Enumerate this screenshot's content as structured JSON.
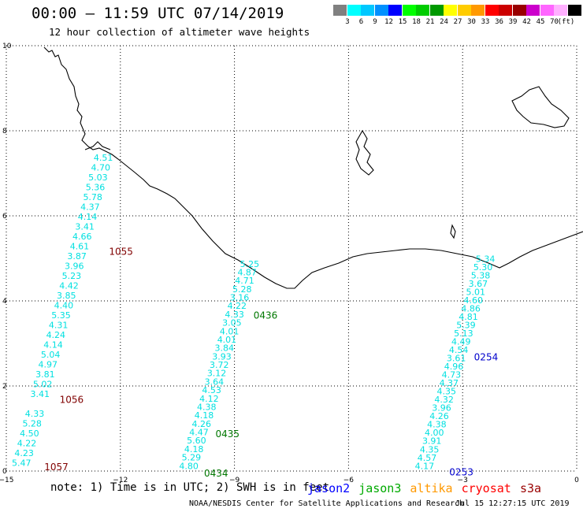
{
  "header": {
    "title": "00:00 – 11:59 UTC 07/14/2019",
    "subtitle": "12 hour collection of altimeter wave heights"
  },
  "scale": {
    "unit": "(ft)",
    "bins": [
      {
        "label": "",
        "color": "#808080"
      },
      {
        "label": "3",
        "color": "#00ffff"
      },
      {
        "label": "6",
        "color": "#00c8ff"
      },
      {
        "label": "9",
        "color": "#0090ff"
      },
      {
        "label": "12",
        "color": "#0000ff"
      },
      {
        "label": "15",
        "color": "#00ff00"
      },
      {
        "label": "18",
        "color": "#00cc00"
      },
      {
        "label": "21",
        "color": "#009900"
      },
      {
        "label": "24",
        "color": "#ffff00"
      },
      {
        "label": "27",
        "color": "#ffcc00"
      },
      {
        "label": "30",
        "color": "#ff9900"
      },
      {
        "label": "33",
        "color": "#ff0000"
      },
      {
        "label": "36",
        "color": "#cc0000"
      },
      {
        "label": "39",
        "color": "#990000"
      },
      {
        "label": "42",
        "color": "#cc00cc"
      },
      {
        "label": "45",
        "color": "#ff66ff"
      },
      {
        "label": "70",
        "color": "#ffb0ff"
      },
      {
        "label": "",
        "color": "#000000"
      }
    ]
  },
  "axes": {
    "x_ticks": [
      "−15",
      "−12",
      "−9",
      "−6",
      "−3",
      "0"
    ],
    "y_ticks": [
      "0",
      "2",
      "4",
      "6",
      "8",
      "10"
    ],
    "x_range": [
      -15,
      0
    ],
    "y_range": [
      0,
      10
    ]
  },
  "tracks": [
    {
      "label_color": "#00e0e0",
      "start_y": 7.3,
      "end_y": 0.12,
      "start_x": -12.45,
      "end_x": -14.6,
      "values": [
        "4.51",
        "4.70",
        "5.03",
        "5.36",
        "5.78",
        "4.37",
        "4.14",
        "3.41",
        "4.66",
        "4.61",
        "3.87",
        "3.96",
        "5.23",
        "4.42",
        "3.85",
        "4.40",
        "5.35",
        "4.31",
        "4.24",
        "4.14",
        "5.04",
        "4.97",
        "3.81",
        "5.02",
        "3.41",
        "",
        "4.33",
        "5.28",
        "4.50",
        "4.22",
        "4.23",
        "5.47"
      ]
    },
    {
      "label_color": "#00e0e0",
      "start_y": 4.8,
      "end_y": 0.05,
      "start_x": -8.6,
      "end_x": -10.2,
      "values": [
        "5.25",
        "4.87",
        "4.71",
        "5.28",
        "3.16",
        "4.22",
        "4.33",
        "3.05",
        "4.01",
        "4.01",
        "3.84",
        "3.93",
        "3.72",
        "3.12",
        "3.64",
        "4.53",
        "4.12",
        "4.38",
        "4.18",
        "4.26",
        "4.47",
        "5.60",
        "4.18",
        "5.29",
        "4.80"
      ]
    },
    {
      "label_color": "#00e0e0",
      "start_y": 4.92,
      "end_y": 0.05,
      "start_x": -2.4,
      "end_x": -4.0,
      "values": [
        "5.34",
        "5.30",
        "5.38",
        "3.67",
        "5.01",
        "4.60",
        "4.86",
        "4.81",
        "5.39",
        "5.13",
        "4.49",
        "4.54",
        "3.61",
        "4.96",
        "4.73",
        "4.37",
        "4.35",
        "4.32",
        "3.96",
        "4.26",
        "4.38",
        "4.00",
        "3.91",
        "4.35",
        "4.57",
        "4.17"
      ]
    }
  ],
  "pass_times": [
    {
      "time": "1055",
      "x": -12.3,
      "y": 5.08,
      "color": "#800000"
    },
    {
      "time": "1056",
      "x": -13.6,
      "y": 1.6,
      "color": "#800000"
    },
    {
      "time": "1057",
      "x": -14.0,
      "y": 0.02,
      "color": "#800000"
    },
    {
      "time": "0436",
      "x": -8.5,
      "y": 3.58,
      "color": "#007700"
    },
    {
      "time": "0435",
      "x": -9.5,
      "y": 0.8,
      "color": "#007700"
    },
    {
      "time": "0434",
      "x": -9.8,
      "y": -0.13,
      "color": "#007700"
    },
    {
      "time": "0254",
      "x": -2.7,
      "y": 2.6,
      "color": "#0000cc"
    },
    {
      "time": "0253",
      "x": -3.35,
      "y": -0.1,
      "color": "#0000cc"
    }
  ],
  "footer": {
    "note": "note: 1) Time is in UTC; 2) SWH is in feet",
    "satellites": [
      {
        "name": "jason2",
        "color": "#0000ff"
      },
      {
        "name": "jason3",
        "color": "#00aa00"
      },
      {
        "name": "altika",
        "color": "#ff9900"
      },
      {
        "name": "cryosat",
        "color": "#ff0000"
      },
      {
        "name": "s3a",
        "color": "#990000"
      }
    ],
    "credit": "NOAA/NESDIS Center for Satellite Applications and Research",
    "timestamp": "Jul 15 12:27:15 UTC 2019"
  }
}
